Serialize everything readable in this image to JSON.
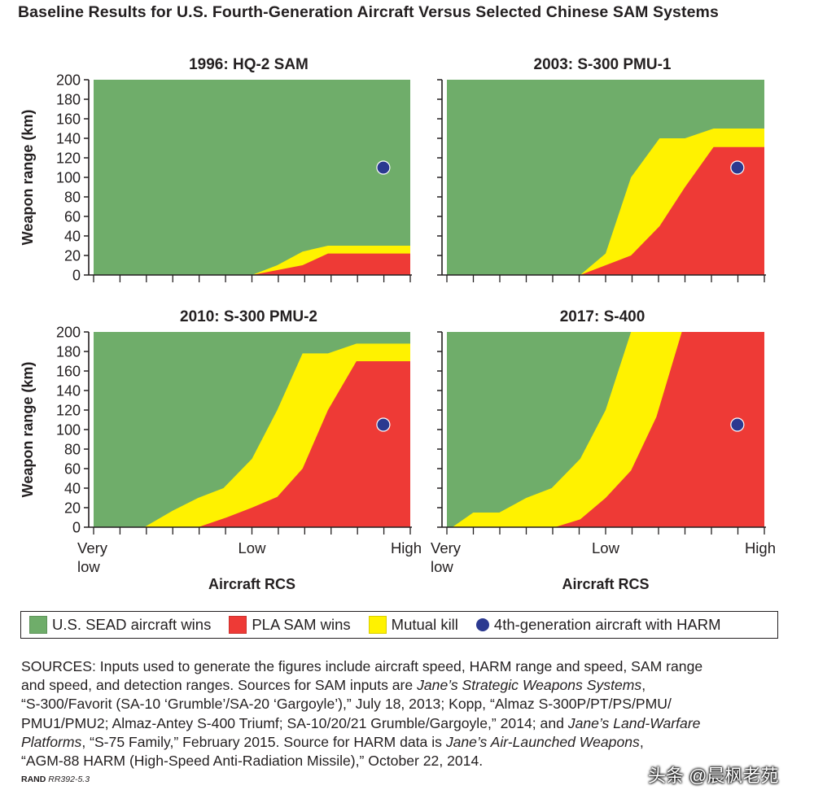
{
  "figure_title": "Baseline Results for U.S. Fourth-Generation Aircraft Versus Selected Chinese SAM Systems",
  "colors": {
    "us_wins": "#6fad6a",
    "pla_wins": "#ee3a36",
    "mutual_kill": "#fff200",
    "harm_marker": "#2b3990",
    "axis": "#231f20"
  },
  "legend": {
    "items": [
      {
        "label": "U.S. SEAD aircraft wins",
        "color": "#6fad6a",
        "shape": "square"
      },
      {
        "label": "PLA SAM wins",
        "color": "#ee3a36",
        "shape": "square"
      },
      {
        "label": "Mutual kill",
        "color": "#fff200",
        "shape": "square"
      },
      {
        "label": "4th-generation aircraft with HARM",
        "color": "#2b3990",
        "shape": "circle"
      }
    ]
  },
  "sources": {
    "lines": [
      [
        {
          "t": "SOURCES: Inputs used to generate the figures include aircraft speed, HARM range and speed, SAM range"
        }
      ],
      [
        {
          "t": "and speed, and detection ranges. Sources for SAM inputs are "
        },
        {
          "t": "Jane’s Strategic Weapons Systems",
          "i": true
        },
        {
          "t": ","
        }
      ],
      [
        {
          "t": "“S-300/Favorit (SA-10 ‘Grumble’/SA-20 ‘Gargoyle’),” July 18, 2013; Kopp, “Almaz S-300P/PT/PS/PMU/"
        }
      ],
      [
        {
          "t": "PMU1/PMU2; Almaz-Antey S-400 Triumf; SA-10/20/21 Grumble/Gargoyle,” 2014; and  "
        },
        {
          "t": "Jane’s Land-Warfare",
          "i": true
        }
      ],
      [
        {
          "t": "Platforms",
          "i": true
        },
        {
          "t": ", “S-75 Family,” February 2015. Source for HARM data is "
        },
        {
          "t": "Jane’s Air-Launched Weapons",
          "i": true
        },
        {
          "t": ","
        }
      ],
      [
        {
          "t": "“AGM-88 HARM (High-Speed Anti-Radiation Missile),” October 22, 2014."
        }
      ]
    ]
  },
  "credit": {
    "org": "RAND",
    "code": "RR392-5.3"
  },
  "watermark": "头条 @晨枫老苑",
  "chart_data": [
    {
      "type": "area",
      "title": "1996: HQ-2 SAM",
      "xlabel": "",
      "ylabel": "Weapon range (km)",
      "ylim": [
        0,
        200
      ],
      "yticks": [
        0,
        20,
        40,
        60,
        80,
        100,
        120,
        140,
        160,
        180,
        200
      ],
      "xlim": [
        0,
        1
      ],
      "xticklabels": [],
      "x_scale_note": "x runs from Very low (0) to High (1)",
      "red_upper": [
        [
          0,
          0
        ],
        [
          0.5,
          0
        ],
        [
          0.66,
          10
        ],
        [
          0.74,
          22
        ],
        [
          1,
          22
        ]
      ],
      "yellow_upper": [
        [
          0,
          0
        ],
        [
          0.5,
          0
        ],
        [
          0.58,
          10
        ],
        [
          0.66,
          24
        ],
        [
          0.74,
          30
        ],
        [
          1,
          30
        ]
      ],
      "harm_point": {
        "x": 0.915,
        "y": 110
      }
    },
    {
      "type": "area",
      "title": "2003: S-300 PMU-1",
      "xlabel": "",
      "ylabel": "",
      "ylim": [
        0,
        200
      ],
      "yticks": [
        0,
        20,
        40,
        60,
        80,
        100,
        120,
        140,
        160,
        180,
        200
      ],
      "xlim": [
        0,
        1
      ],
      "xticklabels": [],
      "red_upper": [
        [
          0,
          0
        ],
        [
          0.42,
          0
        ],
        [
          0.58,
          20
        ],
        [
          0.67,
          50
        ],
        [
          0.75,
          90
        ],
        [
          0.84,
          131
        ],
        [
          1,
          131
        ]
      ],
      "yellow_upper": [
        [
          0,
          0
        ],
        [
          0.42,
          0
        ],
        [
          0.5,
          22
        ],
        [
          0.58,
          100
        ],
        [
          0.67,
          140
        ],
        [
          0.75,
          140
        ],
        [
          0.84,
          150
        ],
        [
          1,
          150
        ]
      ],
      "harm_point": {
        "x": 0.915,
        "y": 110
      }
    },
    {
      "type": "area",
      "title": "2010: S-300 PMU-2",
      "xlabel": "",
      "ylabel": "Weapon range (km)",
      "ylim": [
        0,
        200
      ],
      "yticks": [
        0,
        20,
        40,
        60,
        80,
        100,
        120,
        140,
        160,
        180,
        200
      ],
      "xlim": [
        0,
        1
      ],
      "xticklabels": [],
      "red_upper": [
        [
          0,
          0
        ],
        [
          0.33,
          0
        ],
        [
          0.42,
          10
        ],
        [
          0.5,
          20
        ],
        [
          0.58,
          31
        ],
        [
          0.66,
          60
        ],
        [
          0.74,
          120
        ],
        [
          0.83,
          170
        ],
        [
          1,
          170
        ]
      ],
      "yellow_upper": [
        [
          0,
          0
        ],
        [
          0.16,
          0
        ],
        [
          0.25,
          17
        ],
        [
          0.33,
          30
        ],
        [
          0.41,
          40
        ],
        [
          0.5,
          70
        ],
        [
          0.58,
          120
        ],
        [
          0.66,
          178
        ],
        [
          0.74,
          178
        ],
        [
          0.83,
          188
        ],
        [
          1,
          188
        ]
      ],
      "harm_point": {
        "x": 0.915,
        "y": 105
      }
    },
    {
      "type": "area",
      "title": "2017: S-400",
      "xlabel": "Aircraft RCS",
      "ylabel": "",
      "ylim": [
        0,
        200
      ],
      "yticks": [
        0,
        20,
        40,
        60,
        80,
        100,
        120,
        140,
        160,
        180,
        200
      ],
      "xlim": [
        0,
        1
      ],
      "xticklabels": [
        "Very low",
        "Low",
        "High"
      ],
      "red_upper": [
        [
          0,
          0
        ],
        [
          0.34,
          0
        ],
        [
          0.42,
          8
        ],
        [
          0.5,
          30
        ],
        [
          0.58,
          58
        ],
        [
          0.66,
          113
        ],
        [
          0.74,
          200
        ],
        [
          1,
          200
        ]
      ],
      "yellow_upper": [
        [
          0,
          0
        ],
        [
          0.017,
          0
        ],
        [
          0.083,
          15
        ],
        [
          0.165,
          15
        ],
        [
          0.25,
          30
        ],
        [
          0.33,
          40
        ],
        [
          0.42,
          70
        ],
        [
          0.5,
          120
        ],
        [
          0.58,
          200
        ],
        [
          1,
          200
        ]
      ],
      "harm_point": {
        "x": 0.915,
        "y": 105
      }
    }
  ],
  "left_xaxis": {
    "xlabel": "Aircraft RCS",
    "xticklabels": [
      "Very low",
      "Low",
      "High"
    ]
  }
}
